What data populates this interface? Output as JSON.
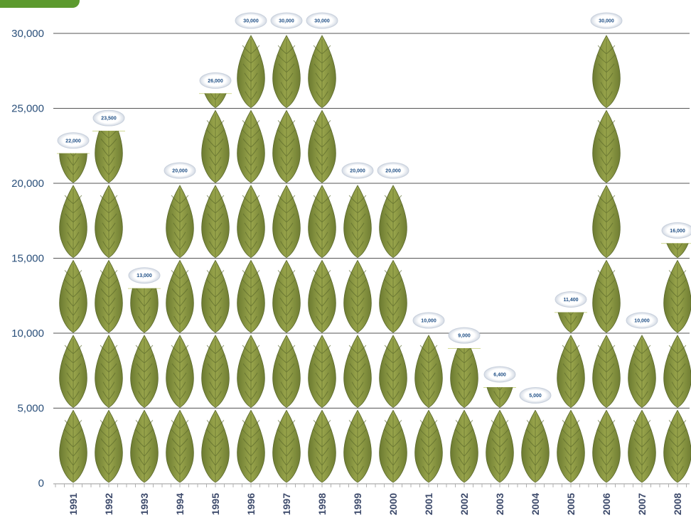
{
  "badge": "",
  "colors": {
    "leaf": "#8e9b43",
    "leaf_dark": "#59672a",
    "leaf_highlight": "#c2cd6f",
    "grid": "#555555",
    "axis_text": "#2a4f7a",
    "label_text": "#1f4f86",
    "badge": "#5c9a2e"
  },
  "chart_data": {
    "type": "bar",
    "style": "pictograph (stacked leaf icons, one leaf per 5,000)",
    "title": "",
    "xlabel": "",
    "ylabel": "",
    "ylim": [
      0,
      30000
    ],
    "yticks": [
      0,
      5000,
      10000,
      15000,
      20000,
      25000,
      30000
    ],
    "ytick_labels": [
      "0",
      "5,000",
      "10,000",
      "15,000",
      "20,000",
      "25,000",
      "30,000"
    ],
    "grid": true,
    "categories": [
      "1991",
      "1992",
      "1993",
      "1994",
      "1995",
      "1996",
      "1997",
      "1998",
      "1999",
      "2000",
      "2001",
      "2002",
      "2003",
      "2004",
      "2005",
      "2006",
      "2007",
      "2008"
    ],
    "values": [
      22000,
      23500,
      13000,
      20000,
      26000,
      30000,
      30000,
      30000,
      20000,
      20000,
      10000,
      9000,
      6400,
      5000,
      11400,
      30000,
      10000,
      16000
    ],
    "data_labels": [
      "22,000",
      "23,500",
      "13,000",
      "20,000",
      "26,000",
      "30,000",
      "30,000",
      "30,000",
      "20,000",
      "20,000",
      "10,000",
      "9,000",
      "6,400",
      "5,000",
      "11,400",
      "30,000",
      "10,000",
      "16,000"
    ]
  }
}
